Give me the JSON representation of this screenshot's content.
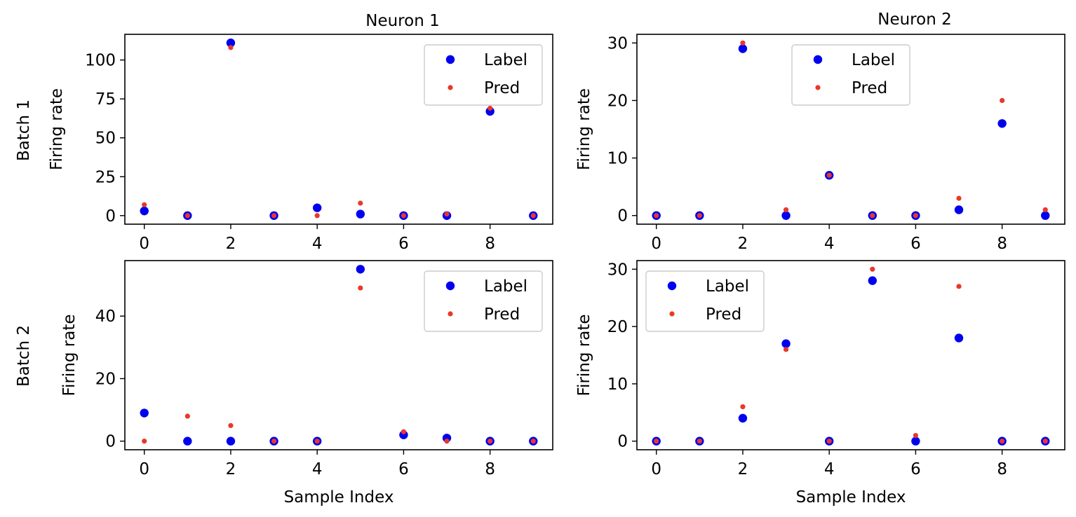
{
  "column_titles": [
    "Neuron 1",
    "Neuron 2"
  ],
  "row_labels": [
    "Batch 1",
    "Batch 2"
  ],
  "colors": {
    "label": "#0000ee",
    "pred": "#e8382a"
  },
  "chart_data": [
    {
      "type": "scatter",
      "row_label": "Batch 1",
      "column_title": "Neuron 1",
      "xlabel": "",
      "ylabel": "Firing rate",
      "x": [
        0,
        1,
        2,
        3,
        4,
        5,
        6,
        7,
        8,
        9
      ],
      "series": [
        {
          "name": "Label",
          "values": [
            3,
            0,
            111,
            0,
            5,
            1,
            0,
            0,
            67,
            0
          ]
        },
        {
          "name": "Pred",
          "values": [
            7,
            0,
            108,
            0,
            0,
            8,
            0,
            1,
            69,
            0
          ]
        }
      ],
      "xlim": [
        -0.45,
        9.45
      ],
      "ylim": [
        -5.5,
        116.5
      ],
      "xticks": [
        0,
        2,
        4,
        6,
        8
      ],
      "yticks": [
        0,
        25,
        50,
        75,
        100
      ],
      "legend": "upper right"
    },
    {
      "type": "scatter",
      "row_label": "Batch 1",
      "column_title": "Neuron 2",
      "xlabel": "",
      "ylabel": "Firing rate",
      "x": [
        0,
        1,
        2,
        3,
        4,
        5,
        6,
        7,
        8,
        9
      ],
      "series": [
        {
          "name": "Label",
          "values": [
            0,
            0,
            29,
            0,
            7,
            0,
            0,
            1,
            16,
            0
          ]
        },
        {
          "name": "Pred",
          "values": [
            0,
            0,
            30,
            1,
            7,
            0,
            0,
            3,
            20,
            1
          ]
        }
      ],
      "xlim": [
        -0.45,
        9.45
      ],
      "ylim": [
        -1.5,
        31.5
      ],
      "xticks": [
        0,
        2,
        4,
        6,
        8
      ],
      "yticks": [
        0,
        10,
        20,
        30
      ],
      "legend": "upper center"
    },
    {
      "type": "scatter",
      "row_label": "Batch 2",
      "column_title": "Neuron 1",
      "xlabel": "Sample Index",
      "ylabel": "Firing rate",
      "x": [
        0,
        1,
        2,
        3,
        4,
        5,
        6,
        7,
        8,
        9
      ],
      "series": [
        {
          "name": "Label",
          "values": [
            9,
            0,
            0,
            0,
            0,
            55,
            2,
            1,
            0,
            0
          ]
        },
        {
          "name": "Pred",
          "values": [
            0,
            8,
            5,
            0,
            0,
            49,
            3,
            0,
            0,
            0
          ]
        }
      ],
      "xlim": [
        -0.45,
        9.45
      ],
      "ylim": [
        -2.75,
        57.75
      ],
      "xticks": [
        0,
        2,
        4,
        6,
        8
      ],
      "yticks": [
        0,
        20,
        40
      ],
      "legend": "upper right"
    },
    {
      "type": "scatter",
      "row_label": "Batch 2",
      "column_title": "Neuron 2",
      "xlabel": "Sample Index",
      "ylabel": "Firing rate",
      "x": [
        0,
        1,
        2,
        3,
        4,
        5,
        6,
        7,
        8,
        9
      ],
      "series": [
        {
          "name": "Label",
          "values": [
            0,
            0,
            4,
            17,
            0,
            28,
            0,
            18,
            0,
            0
          ]
        },
        {
          "name": "Pred",
          "values": [
            0,
            0,
            6,
            16,
            0,
            30,
            1,
            27,
            0,
            0
          ]
        }
      ],
      "xlim": [
        -0.45,
        9.45
      ],
      "ylim": [
        -1.5,
        31.5
      ],
      "xticks": [
        0,
        2,
        4,
        6,
        8
      ],
      "yticks": [
        0,
        10,
        20,
        30
      ],
      "legend": "upper left"
    }
  ]
}
